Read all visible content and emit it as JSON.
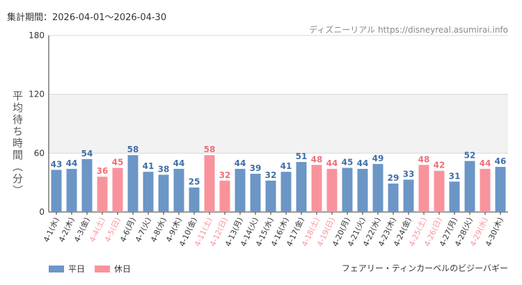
{
  "header": {
    "period": "集計期間：2026-04-01～2026-04-30",
    "source": "ディズニーリアル https://disneyreal.asumirai.info"
  },
  "colors": {
    "weekday": "#6b96c6",
    "holiday": "#f9939b",
    "weekday_text": "#3f6fa8",
    "holiday_text": "#ef6f78",
    "band": "#f2f2f2"
  },
  "chart_data": {
    "type": "bar",
    "title": "フェアリー・ティンカーベルのビジーバギー",
    "ylabel": "平均待ち時間（分）",
    "ylim": [
      0,
      180
    ],
    "yticks": [
      0,
      60,
      120,
      180
    ],
    "legend": [
      {
        "name": "平日",
        "type": "weekday"
      },
      {
        "name": "休日",
        "type": "holiday"
      }
    ],
    "legend_position": "bottom-left",
    "categories": [
      "4-1(水)",
      "4-2(木)",
      "4-3(金)",
      "4-4(土)",
      "4-5(日)",
      "4-6(月)",
      "4-7(火)",
      "4-8(水)",
      "4-9(木)",
      "4-10(金)",
      "4-11(土)",
      "4-12(日)",
      "4-13(月)",
      "4-14(火)",
      "4-15(水)",
      "4-16(木)",
      "4-17(金)",
      "4-18(土)",
      "4-19(日)",
      "4-20(月)",
      "4-21(火)",
      "4-22(水)",
      "4-23(木)",
      "4-24(金)",
      "4-25(土)",
      "4-26(日)",
      "4-27(月)",
      "4-28(火)",
      "4-29(水)",
      "4-30(木)"
    ],
    "values": [
      43,
      44,
      54,
      36,
      45,
      58,
      41,
      38,
      44,
      25,
      58,
      32,
      44,
      39,
      32,
      41,
      51,
      48,
      44,
      45,
      44,
      49,
      29,
      33,
      48,
      42,
      31,
      52,
      44,
      46
    ],
    "day_type": [
      "weekday",
      "weekday",
      "weekday",
      "holiday",
      "holiday",
      "weekday",
      "weekday",
      "weekday",
      "weekday",
      "weekday",
      "holiday",
      "holiday",
      "weekday",
      "weekday",
      "weekday",
      "weekday",
      "weekday",
      "holiday",
      "holiday",
      "weekday",
      "weekday",
      "weekday",
      "weekday",
      "weekday",
      "holiday",
      "holiday",
      "weekday",
      "weekday",
      "holiday",
      "weekday"
    ]
  }
}
